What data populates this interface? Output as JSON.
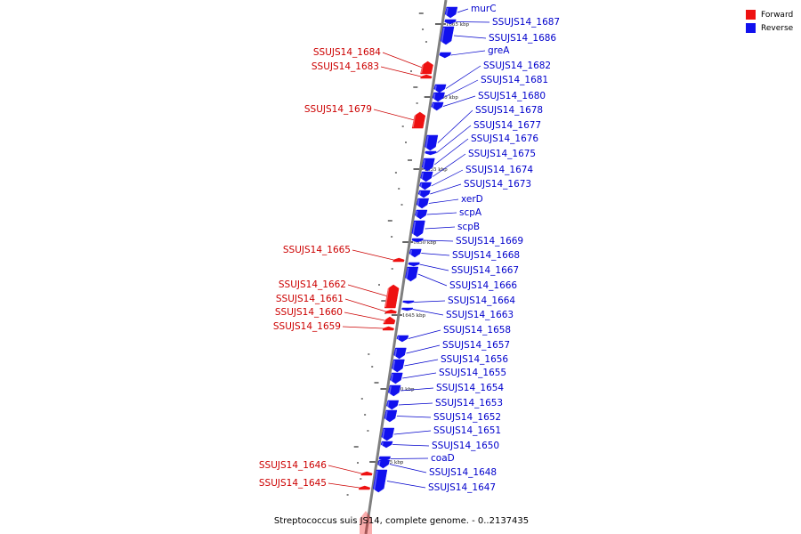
{
  "colors": {
    "forward": "#ee1111",
    "reverse": "#1111ee",
    "axis": "#7f7f7f",
    "forward_label": "#cc0000",
    "reverse_label": "#0000cc"
  },
  "legend": {
    "forward_label": "Forward",
    "reverse_label": "Reverse"
  },
  "caption": "Streptococcus suis JS14, complete genome. - 0..2137435",
  "ticks": [
    {
      "kbp": 1665,
      "label": "1665 kbp"
    },
    {
      "kbp": 1660,
      "label": "1660 kbp"
    },
    {
      "kbp": 1655,
      "label": "1655 kbp"
    },
    {
      "kbp": 1650,
      "label": "1650 kbp"
    },
    {
      "kbp": 1645,
      "label": "1645 kbp"
    },
    {
      "kbp": 1640,
      "label": "1640 kbp"
    },
    {
      "kbp": 1635,
      "label": "1635 kbp"
    }
  ],
  "genes": [
    {
      "name": "murC",
      "strand": "reverse"
    },
    {
      "name": "SSUJS14_1687",
      "strand": "reverse"
    },
    {
      "name": "SSUJS14_1686",
      "strand": "reverse"
    },
    {
      "name": "greA",
      "strand": "reverse"
    },
    {
      "name": "SSUJS14_1684",
      "strand": "forward"
    },
    {
      "name": "SSUJS14_1683",
      "strand": "forward"
    },
    {
      "name": "SSUJS14_1682",
      "strand": "reverse"
    },
    {
      "name": "SSUJS14_1681",
      "strand": "reverse"
    },
    {
      "name": "SSUJS14_1680",
      "strand": "reverse"
    },
    {
      "name": "SSUJS14_1679",
      "strand": "forward"
    },
    {
      "name": "SSUJS14_1678",
      "strand": "reverse"
    },
    {
      "name": "SSUJS14_1677",
      "strand": "reverse"
    },
    {
      "name": "SSUJS14_1676",
      "strand": "reverse"
    },
    {
      "name": "SSUJS14_1675",
      "strand": "reverse"
    },
    {
      "name": "SSUJS14_1674",
      "strand": "reverse"
    },
    {
      "name": "SSUJS14_1673",
      "strand": "reverse"
    },
    {
      "name": "xerD",
      "strand": "reverse"
    },
    {
      "name": "scpA",
      "strand": "reverse"
    },
    {
      "name": "scpB",
      "strand": "reverse"
    },
    {
      "name": "SSUJS14_1669",
      "strand": "reverse"
    },
    {
      "name": "SSUJS14_1668",
      "strand": "reverse"
    },
    {
      "name": "SSUJS14_1667",
      "strand": "reverse"
    },
    {
      "name": "SSUJS14_1665",
      "strand": "forward"
    },
    {
      "name": "SSUJS14_1666",
      "strand": "reverse"
    },
    {
      "name": "SSUJS14_1662",
      "strand": "forward"
    },
    {
      "name": "SSUJS14_1664",
      "strand": "reverse"
    },
    {
      "name": "SSUJS14_1661",
      "strand": "forward"
    },
    {
      "name": "SSUJS14_1660",
      "strand": "forward"
    },
    {
      "name": "SSUJS14_1663",
      "strand": "reverse"
    },
    {
      "name": "SSUJS14_1659",
      "strand": "forward"
    },
    {
      "name": "SSUJS14_1658",
      "strand": "reverse"
    },
    {
      "name": "SSUJS14_1657",
      "strand": "reverse"
    },
    {
      "name": "SSUJS14_1656",
      "strand": "reverse"
    },
    {
      "name": "SSUJS14_1655",
      "strand": "reverse"
    },
    {
      "name": "SSUJS14_1654",
      "strand": "reverse"
    },
    {
      "name": "SSUJS14_1653",
      "strand": "reverse"
    },
    {
      "name": "SSUJS14_1652",
      "strand": "reverse"
    },
    {
      "name": "SSUJS14_1651",
      "strand": "reverse"
    },
    {
      "name": "SSUJS14_1650",
      "strand": "reverse"
    },
    {
      "name": "coaD",
      "strand": "reverse"
    },
    {
      "name": "SSUJS14_1648",
      "strand": "reverse"
    },
    {
      "name": "SSUJS14_1647",
      "strand": "reverse"
    },
    {
      "name": "SSUJS14_1646",
      "strand": "forward"
    },
    {
      "name": "SSUJS14_1645",
      "strand": "forward"
    }
  ]
}
